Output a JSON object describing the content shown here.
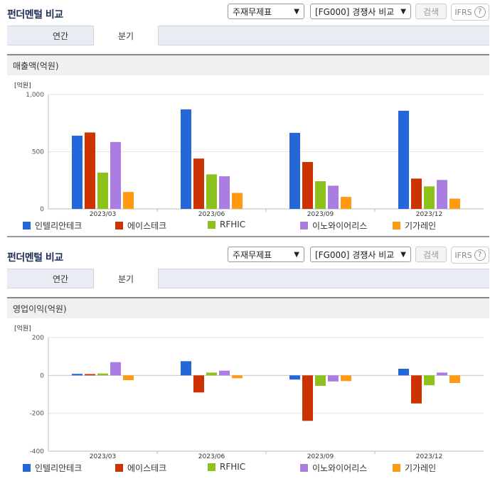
{
  "panel_title": "펀더멘털 비교",
  "controls": {
    "report_select": "주재무제표",
    "compare_select": "[FG000] 경쟁사 비교",
    "search_label": "검색",
    "ifrs_label": "IFRS",
    "help_glyph": "?"
  },
  "tabs": [
    "연간",
    "분기"
  ],
  "active_tab": "분기",
  "legend": [
    {
      "name": "인텔리안테크",
      "color": "#2566d8"
    },
    {
      "name": "에이스테크",
      "color": "#cc3300"
    },
    {
      "name": "RFHIC",
      "color": "#8cc21b"
    },
    {
      "name": "이노와이어리스",
      "color": "#a97ee0"
    },
    {
      "name": "기가레인",
      "color": "#ff9a12"
    }
  ],
  "chart_data": [
    {
      "type": "bar",
      "title": "매출액(억원)",
      "unit_label": "[억원]",
      "categories": [
        "2023/03",
        "2023/06",
        "2023/09",
        "2023/12"
      ],
      "ylim": [
        0,
        1000
      ],
      "yticks": [
        0,
        500,
        1000
      ],
      "ytick_labels": [
        "0",
        "500",
        "1,000"
      ],
      "series": [
        {
          "name": "인텔리안테크",
          "values": [
            640,
            870,
            665,
            858
          ]
        },
        {
          "name": "에이스테크",
          "values": [
            668,
            440,
            410,
            265
          ]
        },
        {
          "name": "RFHIC",
          "values": [
            317,
            302,
            242,
            197
          ]
        },
        {
          "name": "이노와이어리스",
          "values": [
            585,
            285,
            203,
            253
          ]
        },
        {
          "name": "기가레인",
          "values": [
            148,
            140,
            105,
            90
          ]
        }
      ]
    },
    {
      "type": "bar",
      "title": "영업이익(억원)",
      "unit_label": "[억원]",
      "categories": [
        "2023/03",
        "2023/06",
        "2023/09",
        "2023/12"
      ],
      "ylim": [
        -400,
        200
      ],
      "yticks": [
        -400,
        -200,
        0,
        200
      ],
      "ytick_labels": [
        "-400",
        "-200",
        "0",
        "200"
      ],
      "series": [
        {
          "name": "인텔리안테크",
          "values": [
            8,
            75,
            -22,
            35
          ]
        },
        {
          "name": "에이스테크",
          "values": [
            7,
            -90,
            -240,
            -148
          ]
        },
        {
          "name": "RFHIC",
          "values": [
            10,
            15,
            -55,
            -52
          ]
        },
        {
          "name": "이노와이어리스",
          "values": [
            70,
            25,
            -32,
            15
          ]
        },
        {
          "name": "기가레인",
          "values": [
            -25,
            -15,
            -30,
            -40
          ]
        }
      ]
    }
  ]
}
